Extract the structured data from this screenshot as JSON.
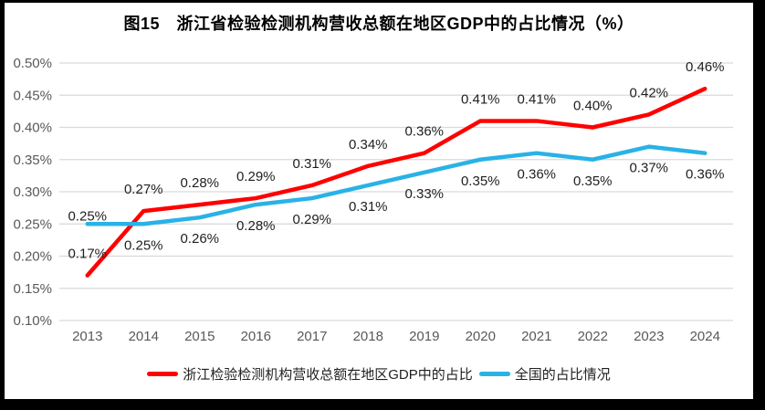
{
  "title": "图15　浙江省检验检测机构营收总额在地区GDP中的占比情况（%）",
  "colors": {
    "background": "#FFFFFF",
    "frame": "#000000",
    "grid": "#D9D9D9",
    "axis_text": "#595959",
    "label_text": "#1f1f1f",
    "series_zhejiang": "#FF0000",
    "series_national": "#29B2E6"
  },
  "chart_data": {
    "type": "line",
    "categories": [
      "2013",
      "2014",
      "2015",
      "2016",
      "2017",
      "2018",
      "2019",
      "2020",
      "2021",
      "2022",
      "2023",
      "2024"
    ],
    "series": [
      {
        "name": "浙江检验检测机构营收总额在地区GDP中的占比",
        "color": "#FF0000",
        "values": [
          0.17,
          0.27,
          0.28,
          0.29,
          0.31,
          0.34,
          0.36,
          0.41,
          0.41,
          0.4,
          0.42,
          0.46
        ],
        "labels": [
          "0.17%",
          "0.27%",
          "0.28%",
          "0.29%",
          "0.31%",
          "0.34%",
          "0.36%",
          "0.41%",
          "0.41%",
          "0.40%",
          "0.42%",
          "0.46%"
        ],
        "label_placement": "above",
        "label_placement_overrides": {}
      },
      {
        "name": "全国的占比情况",
        "color": "#29B2E6",
        "values": [
          0.25,
          0.25,
          0.26,
          0.28,
          0.29,
          0.31,
          0.33,
          0.35,
          0.36,
          0.35,
          0.37,
          0.36
        ],
        "labels": [
          "0.25%",
          "0.25%",
          "0.26%",
          "0.28%",
          "0.29%",
          "0.31%",
          "0.33%",
          "0.35%",
          "0.36%",
          "0.35%",
          "0.37%",
          "0.36%"
        ],
        "label_placement": "below",
        "label_placement_overrides": {
          "0": "above_close"
        }
      }
    ],
    "ylim": [
      0.1,
      0.5
    ],
    "ytick_step": 0.05,
    "yticks": [
      {
        "value": 0.5,
        "label": "0.50%"
      },
      {
        "value": 0.45,
        "label": "0.45%"
      },
      {
        "value": 0.4,
        "label": "0.40%"
      },
      {
        "value": 0.35,
        "label": "0.35%"
      },
      {
        "value": 0.3,
        "label": "0.30%"
      },
      {
        "value": 0.25,
        "label": "0.25%"
      },
      {
        "value": 0.2,
        "label": "0.20%"
      },
      {
        "value": 0.15,
        "label": "0.15%"
      },
      {
        "value": 0.1,
        "label": "0.10%"
      }
    ],
    "grid": true,
    "legend_position": "bottom"
  }
}
